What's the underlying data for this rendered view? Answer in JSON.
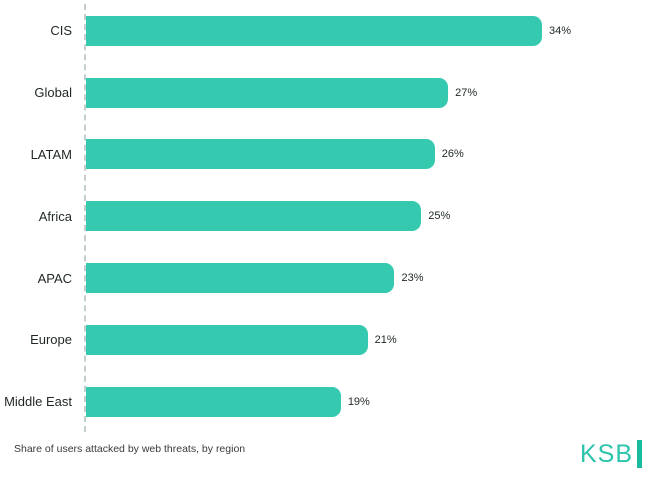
{
  "chart_data": {
    "type": "bar",
    "orientation": "horizontal",
    "categories": [
      "CIS",
      "Global",
      "LATAM",
      "Africa",
      "APAC",
      "Europe",
      "Middle East"
    ],
    "values": [
      34,
      27,
      26,
      25,
      23,
      21,
      19
    ],
    "value_labels": [
      "34%",
      "27%",
      "26%",
      "25%",
      "23%",
      "21%",
      "19%"
    ],
    "title": "",
    "xlabel": "",
    "ylabel": "",
    "xlim": [
      0,
      34
    ],
    "grid": "off",
    "legend": "none",
    "bar_color": "#35c9b0",
    "axis_style": "dashed-vertical-baseline"
  },
  "caption": "Share of users attacked by web threats, by region",
  "logo": {
    "text": "KSB",
    "color": "#2cc4ab"
  }
}
